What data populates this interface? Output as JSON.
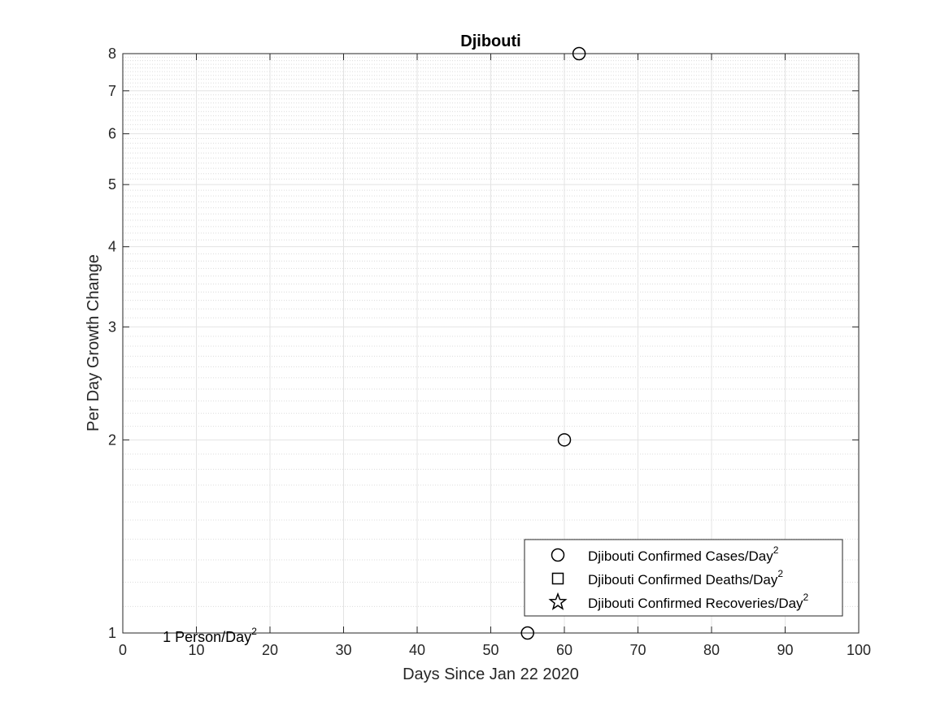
{
  "chart_data": {
    "type": "scatter",
    "title": "Djibouti",
    "xlabel": "Days Since Jan 22 2020",
    "ylabel": "Per Day Growth Change",
    "xlim": [
      0,
      100
    ],
    "ylim": [
      1,
      8
    ],
    "yscale": "log",
    "xticks": [
      0,
      10,
      20,
      30,
      40,
      50,
      60,
      70,
      80,
      90,
      100
    ],
    "yticks": [
      1,
      2,
      3,
      4,
      5,
      6,
      7,
      8
    ],
    "grid": true,
    "legend_position": "bottom-right",
    "series": [
      {
        "name": "Djibouti Confirmed Cases/Day",
        "name_sup": "2",
        "marker": "circle",
        "x": [
          55,
          60,
          62
        ],
        "y": [
          1,
          2,
          8
        ]
      },
      {
        "name": "Djibouti Confirmed Deaths/Day",
        "name_sup": "2",
        "marker": "square",
        "x": [],
        "y": []
      },
      {
        "name": "Djibouti Confirmed Recoveries/Day",
        "name_sup": "2",
        "marker": "star",
        "x": [],
        "y": []
      }
    ],
    "annotations": [
      {
        "text": "1 Person/Day",
        "sup": "2",
        "x": 3,
        "y": 1
      }
    ]
  }
}
